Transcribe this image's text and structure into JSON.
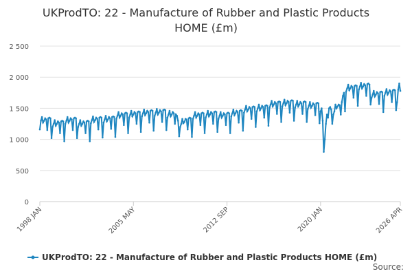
{
  "chart_data": {
    "type": "line",
    "title": "UKProdTO: 22 - Manufacture of Rubber and Plastic Products HOME (£m)",
    "source": "Source:",
    "ylim": [
      0,
      2500
    ],
    "yticks": [
      0,
      500,
      {
        "value": 1000,
        "label": "1 000"
      },
      {
        "value": 1500,
        "label": "1 500"
      },
      {
        "value": 2000,
        "label": "2 000"
      },
      {
        "value": 2500,
        "label": "2 500"
      }
    ],
    "grid": true,
    "categories": [
      "1998 JAN",
      null,
      null,
      null,
      null,
      null,
      null,
      null,
      null,
      null,
      null,
      null,
      null,
      null,
      null,
      null,
      null,
      null,
      null,
      null,
      null,
      null,
      null,
      null,
      null,
      null,
      null,
      null,
      null,
      null,
      null,
      null,
      null,
      null,
      null,
      null,
      null,
      null,
      null,
      null,
      null,
      null,
      null,
      null,
      null,
      null,
      null,
      null,
      null,
      null,
      null,
      null,
      null,
      null,
      null,
      null,
      null,
      null,
      null,
      null,
      null,
      null,
      null,
      null,
      null,
      null,
      null,
      null,
      null,
      null,
      null,
      null,
      null,
      null,
      null,
      null,
      null,
      null,
      null,
      null,
      null,
      null,
      null,
      null,
      null,
      null,
      null,
      null,
      "2005 MAY",
      null,
      null,
      null,
      null,
      null,
      null,
      null,
      null,
      null,
      null,
      null,
      null,
      null,
      null,
      null,
      null,
      null,
      null,
      null,
      null,
      null,
      null,
      null,
      null,
      null,
      null,
      null,
      null,
      null,
      null,
      null,
      null,
      null,
      null,
      null,
      null,
      null,
      null,
      null,
      null,
      null,
      null,
      null,
      null,
      null,
      null,
      null,
      null,
      null,
      null,
      null,
      null,
      null,
      null,
      null,
      null,
      null,
      null,
      null,
      null,
      null,
      null,
      null,
      null,
      null,
      null,
      null,
      null,
      null,
      null,
      null,
      null,
      null,
      null,
      null,
      null,
      null,
      null,
      null,
      null,
      null,
      null,
      null,
      null,
      null,
      null,
      null,
      "2012 SEP",
      null,
      null,
      null,
      null,
      null,
      null,
      null,
      null,
      null,
      null,
      null,
      null,
      null,
      null,
      null,
      null,
      null,
      null,
      null,
      null,
      null,
      null,
      null,
      null,
      null,
      null,
      null,
      null,
      null,
      null,
      null,
      null,
      null,
      null,
      null,
      null,
      null,
      null,
      null,
      null,
      null,
      null,
      null,
      null,
      null,
      null,
      null,
      null,
      null,
      null,
      null,
      null,
      null,
      null,
      null,
      null,
      null,
      null,
      null,
      null,
      null,
      null,
      null,
      null,
      null,
      null,
      null,
      null,
      null,
      null,
      null,
      null,
      null,
      null,
      null,
      null,
      null,
      null,
      null,
      null,
      null,
      null,
      null,
      null,
      null,
      null,
      null,
      "2020 JAN",
      null,
      null,
      null,
      null,
      null,
      null,
      null,
      null,
      null,
      null,
      null,
      null,
      null,
      null,
      null,
      null,
      null,
      null,
      null,
      null,
      null,
      null,
      null,
      null,
      null,
      null,
      null,
      null,
      null,
      null,
      null,
      null,
      null,
      null,
      null,
      null,
      null,
      null,
      null,
      null,
      null,
      null,
      null,
      null,
      null,
      null,
      null,
      null,
      null,
      null,
      null,
      null,
      null,
      null,
      null,
      null,
      null,
      null,
      null,
      null,
      null,
      null,
      null,
      null,
      null,
      null,
      null,
      null,
      null,
      null,
      null,
      null,
      null,
      null,
      "2026 APR"
    ],
    "series": [
      {
        "name": "UKProdTO: 22 - Manufacture of Rubber and Plastic Products HOME (£m)",
        "color": "#1f86c0",
        "values": [
          1160,
          1300,
          1360,
          1270,
          1300,
          1340,
          1320,
          1150,
          1340,
          1350,
          1340,
          1020,
          1200,
          1250,
          1310,
          1220,
          1250,
          1290,
          1270,
          1100,
          1290,
          1300,
          1290,
          970,
          1250,
          1300,
          1360,
          1270,
          1300,
          1340,
          1320,
          1150,
          1340,
          1350,
          1340,
          1020,
          1200,
          1250,
          1310,
          1220,
          1250,
          1290,
          1270,
          1100,
          1290,
          1300,
          1290,
          970,
          1260,
          1310,
          1370,
          1280,
          1310,
          1350,
          1330,
          1160,
          1350,
          1360,
          1350,
          1030,
          1270,
          1320,
          1380,
          1290,
          1320,
          1360,
          1340,
          1170,
          1360,
          1370,
          1360,
          1040,
          1330,
          1380,
          1440,
          1350,
          1380,
          1420,
          1400,
          1230,
          1420,
          1430,
          1420,
          1100,
          1350,
          1400,
          1460,
          1370,
          1400,
          1440,
          1420,
          1250,
          1440,
          1450,
          1440,
          1120,
          1370,
          1420,
          1480,
          1390,
          1420,
          1460,
          1440,
          1270,
          1460,
          1470,
          1460,
          1140,
          1380,
          1430,
          1490,
          1400,
          1430,
          1470,
          1450,
          1280,
          1470,
          1480,
          1470,
          1150,
          1350,
          1400,
          1460,
          1370,
          1400,
          1440,
          1420,
          1250,
          1400,
          1380,
          1300,
          1050,
          1200,
          1250,
          1330,
          1260,
          1280,
          1330,
          1320,
          1160,
          1340,
          1350,
          1340,
          1040,
          1330,
          1380,
          1440,
          1350,
          1380,
          1420,
          1400,
          1230,
          1420,
          1430,
          1420,
          1100,
          1350,
          1400,
          1460,
          1370,
          1400,
          1440,
          1420,
          1250,
          1440,
          1450,
          1440,
          1120,
          1330,
          1380,
          1440,
          1350,
          1380,
          1420,
          1400,
          1230,
          1420,
          1430,
          1420,
          1100,
          1370,
          1420,
          1480,
          1390,
          1420,
          1460,
          1440,
          1270,
          1460,
          1470,
          1460,
          1140,
          1430,
          1480,
          1540,
          1450,
          1480,
          1520,
          1500,
          1330,
          1520,
          1530,
          1520,
          1200,
          1450,
          1500,
          1560,
          1470,
          1500,
          1540,
          1520,
          1350,
          1540,
          1550,
          1540,
          1220,
          1510,
          1560,
          1620,
          1530,
          1560,
          1600,
          1580,
          1410,
          1600,
          1610,
          1600,
          1280,
          1530,
          1580,
          1640,
          1550,
          1580,
          1620,
          1600,
          1430,
          1620,
          1630,
          1620,
          1300,
          1510,
          1560,
          1620,
          1530,
          1560,
          1600,
          1580,
          1410,
          1600,
          1610,
          1600,
          1280,
          1490,
          1540,
          1600,
          1510,
          1540,
          1580,
          1560,
          1390,
          1580,
          1590,
          1580,
          1260,
          1450,
          1500,
          1300,
          800,
          1000,
          1250,
          1400,
          1350,
          1500,
          1520,
          1480,
          1250,
          1400,
          1450,
          1560,
          1500,
          1530,
          1560,
          1550,
          1400,
          1600,
          1700,
          1750,
          1450,
          1770,
          1820,
          1880,
          1790,
          1820,
          1860,
          1840,
          1670,
          1860,
          1870,
          1860,
          1540,
          1800,
          1850,
          1910,
          1820,
          1850,
          1890,
          1870,
          1700,
          1890,
          1900,
          1880,
          1560,
          1670,
          1720,
          1780,
          1690,
          1720,
          1760,
          1740,
          1570,
          1760,
          1770,
          1760,
          1440,
          1700,
          1750,
          1810,
          1720,
          1750,
          1790,
          1770,
          1600,
          1790,
          1800,
          1790,
          1470,
          1600,
          1800,
          1900,
          1780
        ]
      }
    ]
  }
}
